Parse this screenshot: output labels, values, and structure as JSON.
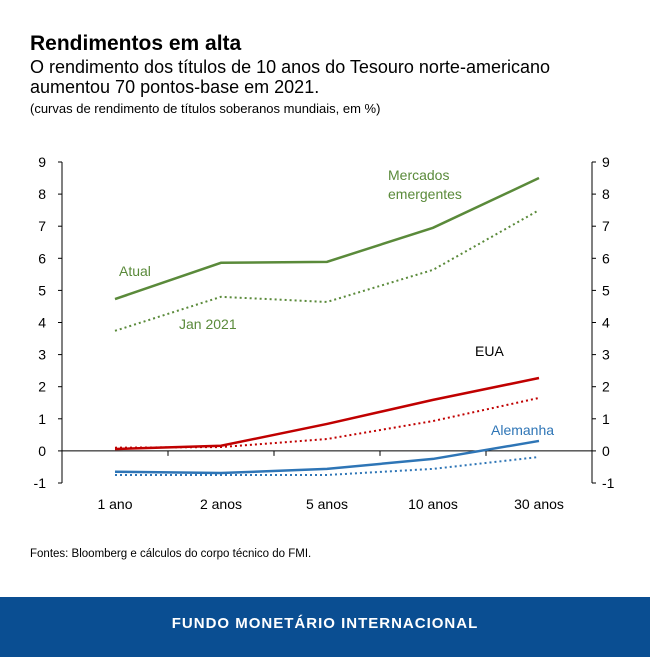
{
  "header": {
    "title": "Rendimentos em alta",
    "subtitle": "O rendimento dos títulos de 10 anos do Tesouro norte-americano aumentou 70 pontos-base em 2021.",
    "note": "(curvas de rendimento de títulos soberanos mundiais, em %)"
  },
  "source": "Fontes: Bloomberg e cálculos do corpo técnico do FMI.",
  "footer": "FUNDO MONETÁRIO INTERNACIONAL",
  "chart_data": {
    "type": "line",
    "categories": [
      "1 ano",
      "2 anos",
      "5 anos",
      "10 anos",
      "30 anos"
    ],
    "ylim": [
      -1,
      9
    ],
    "yticks": [
      "-1",
      "0",
      "1",
      "2",
      "3",
      "4",
      "5",
      "6",
      "7",
      "8",
      "9"
    ],
    "grid": false,
    "series": [
      {
        "group": "Mercados emergentes",
        "name": "Atual",
        "style": "solid",
        "color": "#5a8a3a",
        "values": [
          4.73,
          5.86,
          5.89,
          6.95,
          8.5
        ]
      },
      {
        "group": "Mercados emergentes",
        "name": "Jan 2021",
        "style": "dotted",
        "color": "#5a8a3a",
        "values": [
          3.74,
          4.8,
          4.64,
          5.64,
          7.5
        ]
      },
      {
        "group": "EUA",
        "style": "solid",
        "color": "#c00000",
        "values": [
          0.06,
          0.16,
          0.84,
          1.59,
          2.27
        ]
      },
      {
        "group": "EUA",
        "style": "dotted",
        "color": "#c00000",
        "values": [
          0.1,
          0.12,
          0.37,
          0.93,
          1.65
        ]
      },
      {
        "group": "Alemanha",
        "style": "solid",
        "color": "#2e75b6",
        "values": [
          -0.65,
          -0.69,
          -0.56,
          -0.25,
          0.31
        ]
      },
      {
        "group": "Alemanha",
        "style": "dotted",
        "color": "#2e75b6",
        "values": [
          -0.75,
          -0.75,
          -0.75,
          -0.56,
          -0.19
        ]
      }
    ],
    "annotations": [
      {
        "text": "Mercados emergentes",
        "line1": "Mercados",
        "line2": "emergentes",
        "color": "#5a8a3a"
      },
      {
        "text": "Atual",
        "color": "#5a8a3a"
      },
      {
        "text": "Jan 2021",
        "color": "#5a8a3a"
      },
      {
        "text": "EUA",
        "color": "#000000"
      },
      {
        "text": "Alemanha",
        "color": "#2e75b6"
      }
    ]
  }
}
